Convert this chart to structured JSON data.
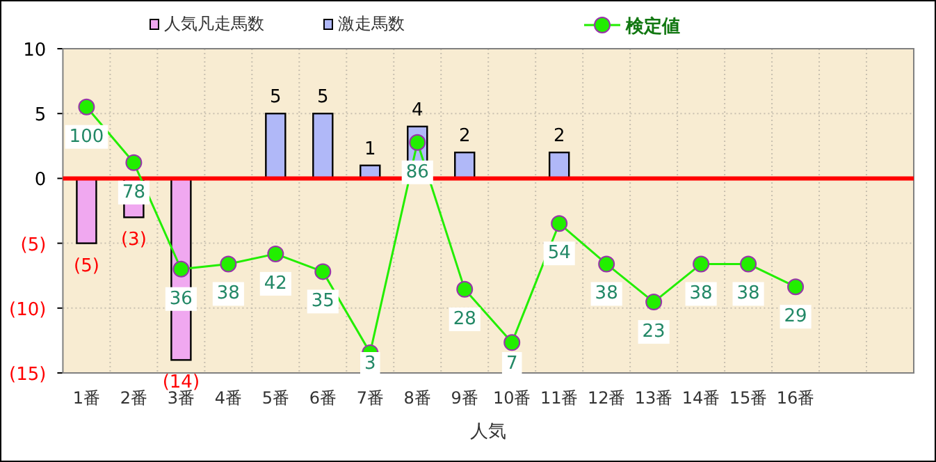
{
  "chart_data": {
    "type": "bar",
    "xlabel": "人気",
    "categories": [
      "1番",
      "2番",
      "3番",
      "4番",
      "5番",
      "6番",
      "7番",
      "8番",
      "9番",
      "10番",
      "11番",
      "12番",
      "13番",
      "14番",
      "15番",
      "16番",
      null,
      null
    ],
    "series": [
      {
        "name": "人気凡走馬数",
        "color": "#f0a8f0",
        "values": [
          -5,
          -3,
          -14,
          null,
          null,
          null,
          null,
          null,
          null,
          null,
          null,
          null,
          null,
          null,
          null,
          null,
          null,
          null
        ],
        "value_labels": [
          "(5)",
          "(3)",
          "(14)",
          null,
          null,
          null,
          null,
          null,
          null,
          null,
          null,
          null,
          null,
          null,
          null,
          null,
          null,
          null
        ]
      },
      {
        "name": "激走馬数",
        "color": "#b0b8f8",
        "values": [
          null,
          null,
          null,
          null,
          5,
          5,
          1,
          4,
          2,
          null,
          2,
          null,
          null,
          null,
          null,
          null,
          null,
          null
        ],
        "value_labels": [
          null,
          null,
          null,
          null,
          "5",
          "5",
          "1",
          "4",
          "2",
          null,
          "2",
          null,
          null,
          null,
          null,
          null,
          null,
          null
        ]
      },
      {
        "name": "検定値",
        "type": "line",
        "axis": "y2",
        "color": "#22ee00",
        "values": [
          100,
          78,
          36,
          38,
          42,
          35,
          3,
          86,
          28,
          7,
          54,
          38,
          23,
          38,
          38,
          29,
          null,
          null
        ],
        "value_labels": [
          "100",
          "78",
          "36",
          "38",
          "42",
          "35",
          "3",
          "86",
          "28",
          "7",
          "54",
          "38",
          "23",
          "38",
          "38",
          "29",
          null,
          null
        ]
      }
    ],
    "ylim": [
      -15,
      10
    ],
    "yticks": [
      10,
      5,
      0,
      {
        "value": -5,
        "label": "(5)"
      },
      {
        "value": -10,
        "label": "(10)"
      },
      {
        "value": -15,
        "label": "(15)"
      }
    ],
    "y2lim": [
      -5,
      123
    ],
    "tick_labels": "xy",
    "ref_lines": [
      {
        "axis": "y",
        "value": 0,
        "color": "#ff0000"
      }
    ],
    "grid": true,
    "legend": "top",
    "marker": "circle"
  }
}
